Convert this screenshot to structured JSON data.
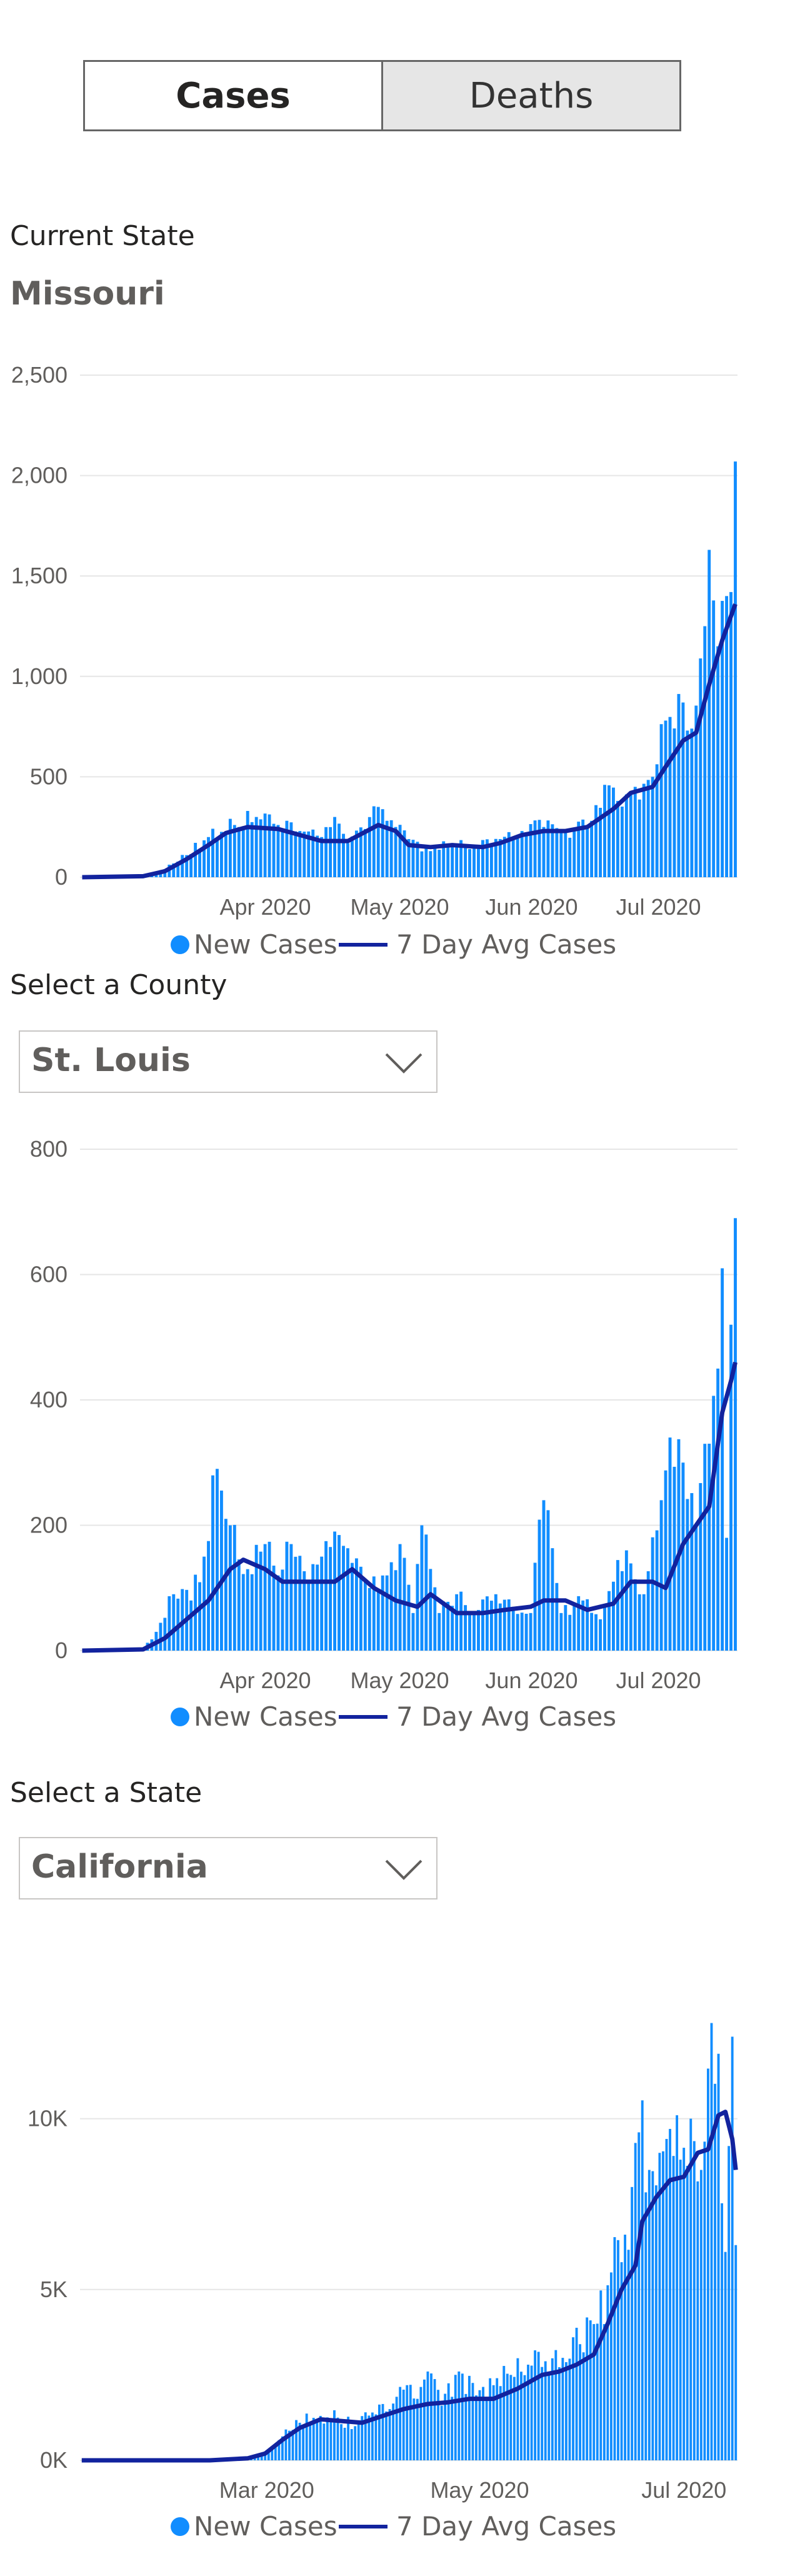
{
  "tabs": {
    "cases": "Cases",
    "deaths": "Deaths"
  },
  "current_state": {
    "label": "Current State",
    "value": "Missouri"
  },
  "county_select": {
    "label": "Select a County",
    "value": "St. Louis"
  },
  "state_select": {
    "label": "Select a State",
    "value": "California"
  },
  "legend": {
    "bars": "New Cases",
    "line": "7 Day Avg Cases"
  },
  "colors": {
    "bars": "#118dff",
    "line": "#12239e",
    "grid": "#e6e6e6"
  },
  "chart_data": [
    {
      "type": "bar",
      "id": "missouri",
      "title": "",
      "x_start": "2020-03-01",
      "x_end": "2020-07-29",
      "x_ticks": [
        "Apr 2020",
        "May 2020",
        "Jun 2020",
        "Jul 2020"
      ],
      "y_ticks": [
        "0",
        "500",
        "1,000",
        "1,500",
        "2,000",
        "2,500"
      ],
      "ylim": [
        0,
        2500
      ],
      "series": [
        {
          "name": "New Cases",
          "type": "bar",
          "points": [
            [
              "2020-03-01",
              0
            ],
            [
              "2020-03-10",
              0
            ],
            [
              "2020-03-15",
              5
            ],
            [
              "2020-03-20",
              40
            ],
            [
              "2020-03-25",
              110
            ],
            [
              "2020-03-30",
              200
            ],
            [
              "2020-04-05",
              260
            ],
            [
              "2020-04-08",
              330
            ],
            [
              "2020-04-10",
              300
            ],
            [
              "2020-04-15",
              260
            ],
            [
              "2020-04-20",
              230
            ],
            [
              "2020-04-25",
              200
            ],
            [
              "2020-04-28",
              300
            ],
            [
              "2020-05-01",
              170
            ],
            [
              "2020-05-05",
              240
            ],
            [
              "2020-05-08",
              350
            ],
            [
              "2020-05-12",
              250
            ],
            [
              "2020-05-15",
              190
            ],
            [
              "2020-05-20",
              130
            ],
            [
              "2020-05-25",
              170
            ],
            [
              "2020-05-30",
              150
            ],
            [
              "2020-06-05",
              190
            ],
            [
              "2020-06-10",
              230
            ],
            [
              "2020-06-15",
              250
            ],
            [
              "2020-06-20",
              230
            ],
            [
              "2020-06-25",
              250
            ],
            [
              "2020-06-29",
              460
            ],
            [
              "2020-07-02",
              380
            ],
            [
              "2020-07-06",
              450
            ],
            [
              "2020-07-10",
              500
            ],
            [
              "2020-07-13",
              780
            ],
            [
              "2020-07-17",
              870
            ],
            [
              "2020-07-19",
              740
            ],
            [
              "2020-07-22",
              1250
            ],
            [
              "2020-07-23",
              1630
            ],
            [
              "2020-07-25",
              1150
            ],
            [
              "2020-07-27",
              1400
            ],
            [
              "2020-07-28",
              1420
            ],
            [
              "2020-07-29",
              2070
            ]
          ]
        },
        {
          "name": "7 Day Avg Cases",
          "type": "line",
          "points": [
            [
              "2020-03-01",
              0
            ],
            [
              "2020-03-15",
              5
            ],
            [
              "2020-03-20",
              30
            ],
            [
              "2020-03-25",
              90
            ],
            [
              "2020-03-30",
              160
            ],
            [
              "2020-04-03",
              220
            ],
            [
              "2020-04-08",
              250
            ],
            [
              "2020-04-15",
              240
            ],
            [
              "2020-04-20",
              210
            ],
            [
              "2020-04-25",
              180
            ],
            [
              "2020-05-01",
              180
            ],
            [
              "2020-05-08",
              260
            ],
            [
              "2020-05-12",
              230
            ],
            [
              "2020-05-15",
              160
            ],
            [
              "2020-05-20",
              150
            ],
            [
              "2020-05-25",
              160
            ],
            [
              "2020-06-01",
              150
            ],
            [
              "2020-06-05",
              170
            ],
            [
              "2020-06-10",
              210
            ],
            [
              "2020-06-15",
              230
            ],
            [
              "2020-06-20",
              230
            ],
            [
              "2020-06-25",
              250
            ],
            [
              "2020-07-01",
              340
            ],
            [
              "2020-07-05",
              420
            ],
            [
              "2020-07-10",
              450
            ],
            [
              "2020-07-13",
              550
            ],
            [
              "2020-07-17",
              680
            ],
            [
              "2020-07-20",
              720
            ],
            [
              "2020-07-23",
              960
            ],
            [
              "2020-07-26",
              1180
            ],
            [
              "2020-07-29",
              1360
            ]
          ]
        }
      ]
    },
    {
      "type": "bar",
      "id": "st-louis",
      "title": "",
      "x_start": "2020-03-01",
      "x_end": "2020-07-29",
      "x_ticks": [
        "Apr 2020",
        "May 2020",
        "Jun 2020",
        "Jul 2020"
      ],
      "y_ticks": [
        "0",
        "200",
        "400",
        "600",
        "800"
      ],
      "ylim": [
        0,
        800
      ],
      "series": [
        {
          "name": "New Cases",
          "type": "bar",
          "points": [
            [
              "2020-03-01",
              0
            ],
            [
              "2020-03-10",
              0
            ],
            [
              "2020-03-15",
              5
            ],
            [
              "2020-03-18",
              30
            ],
            [
              "2020-03-22",
              90
            ],
            [
              "2020-03-26",
              80
            ],
            [
              "2020-03-29",
              150
            ],
            [
              "2020-04-01",
              290
            ],
            [
              "2020-04-04",
              200
            ],
            [
              "2020-04-08",
              130
            ],
            [
              "2020-04-12",
              170
            ],
            [
              "2020-04-15",
              120
            ],
            [
              "2020-04-18",
              170
            ],
            [
              "2020-04-22",
              110
            ],
            [
              "2020-04-25",
              150
            ],
            [
              "2020-04-28",
              190
            ],
            [
              "2020-05-02",
              140
            ],
            [
              "2020-05-06",
              100
            ],
            [
              "2020-05-10",
              120
            ],
            [
              "2020-05-13",
              170
            ],
            [
              "2020-05-16",
              60
            ],
            [
              "2020-05-18",
              200
            ],
            [
              "2020-05-22",
              60
            ],
            [
              "2020-05-26",
              90
            ],
            [
              "2020-05-30",
              60
            ],
            [
              "2020-06-04",
              90
            ],
            [
              "2020-06-08",
              70
            ],
            [
              "2020-06-12",
              60
            ],
            [
              "2020-06-15",
              240
            ],
            [
              "2020-06-19",
              60
            ],
            [
              "2020-06-24",
              80
            ],
            [
              "2020-06-28",
              50
            ],
            [
              "2020-07-01",
              110
            ],
            [
              "2020-07-04",
              160
            ],
            [
              "2020-07-08",
              90
            ],
            [
              "2020-07-12",
              240
            ],
            [
              "2020-07-14",
              340
            ],
            [
              "2020-07-17",
              300
            ],
            [
              "2020-07-20",
              200
            ],
            [
              "2020-07-22",
              330
            ],
            [
              "2020-07-25",
              450
            ],
            [
              "2020-07-26",
              610
            ],
            [
              "2020-07-27",
              180
            ],
            [
              "2020-07-28",
              520
            ],
            [
              "2020-07-29",
              690
            ]
          ]
        },
        {
          "name": "7 Day Avg Cases",
          "type": "line",
          "points": [
            [
              "2020-03-01",
              0
            ],
            [
              "2020-03-15",
              2
            ],
            [
              "2020-03-20",
              20
            ],
            [
              "2020-03-25",
              50
            ],
            [
              "2020-03-30",
              80
            ],
            [
              "2020-04-04",
              130
            ],
            [
              "2020-04-07",
              145
            ],
            [
              "2020-04-12",
              130
            ],
            [
              "2020-04-16",
              110
            ],
            [
              "2020-04-22",
              110
            ],
            [
              "2020-04-28",
              110
            ],
            [
              "2020-05-02",
              130
            ],
            [
              "2020-05-07",
              100
            ],
            [
              "2020-05-12",
              80
            ],
            [
              "2020-05-17",
              70
            ],
            [
              "2020-05-20",
              90
            ],
            [
              "2020-05-26",
              60
            ],
            [
              "2020-06-01",
              60
            ],
            [
              "2020-06-06",
              65
            ],
            [
              "2020-06-12",
              70
            ],
            [
              "2020-06-15",
              80
            ],
            [
              "2020-06-20",
              80
            ],
            [
              "2020-06-25",
              65
            ],
            [
              "2020-07-01",
              75
            ],
            [
              "2020-07-05",
              110
            ],
            [
              "2020-07-10",
              110
            ],
            [
              "2020-07-13",
              100
            ],
            [
              "2020-07-17",
              170
            ],
            [
              "2020-07-20",
              200
            ],
            [
              "2020-07-23",
              230
            ],
            [
              "2020-07-26",
              380
            ],
            [
              "2020-07-28",
              430
            ],
            [
              "2020-07-29",
              460
            ]
          ]
        }
      ]
    },
    {
      "type": "bar",
      "id": "california",
      "title": "",
      "x_start": "2020-01-22",
      "x_end": "2020-07-29",
      "x_ticks": [
        "Mar 2020",
        "May 2020",
        "Jul 2020"
      ],
      "y_ticks": [
        "0K",
        "5K",
        "10K"
      ],
      "ylim": [
        0,
        14000
      ],
      "series": [
        {
          "name": "New Cases",
          "type": "bar",
          "points": [
            [
              "2020-01-22",
              0
            ],
            [
              "2020-02-28",
              0
            ],
            [
              "2020-03-10",
              50
            ],
            [
              "2020-03-15",
              200
            ],
            [
              "2020-03-20",
              700
            ],
            [
              "2020-03-25",
              1100
            ],
            [
              "2020-03-31",
              1300
            ],
            [
              "2020-04-05",
              1250
            ],
            [
              "2020-04-10",
              1000
            ],
            [
              "2020-04-15",
              1400
            ],
            [
              "2020-04-20",
              1500
            ],
            [
              "2020-04-25",
              2200
            ],
            [
              "2020-04-28",
              1800
            ],
            [
              "2020-05-01",
              2600
            ],
            [
              "2020-05-05",
              1600
            ],
            [
              "2020-05-10",
              2600
            ],
            [
              "2020-05-15",
              1900
            ],
            [
              "2020-05-20",
              2200
            ],
            [
              "2020-05-25",
              2500
            ],
            [
              "2020-05-30",
              2800
            ],
            [
              "2020-06-04",
              2900
            ],
            [
              "2020-06-09",
              3000
            ],
            [
              "2020-06-14",
              3400
            ],
            [
              "2020-06-19",
              4000
            ],
            [
              "2020-06-23",
              5500
            ],
            [
              "2020-06-26",
              5800
            ],
            [
              "2020-06-29",
              8000
            ],
            [
              "2020-07-01",
              9600
            ],
            [
              "2020-07-04",
              8500
            ],
            [
              "2020-07-07",
              9000
            ],
            [
              "2020-07-10",
              9700
            ],
            [
              "2020-07-13",
              8800
            ],
            [
              "2020-07-16",
              10000
            ],
            [
              "2020-07-19",
              8500
            ],
            [
              "2020-07-22",
              12800
            ],
            [
              "2020-07-24",
              11900
            ],
            [
              "2020-07-26",
              6100
            ],
            [
              "2020-07-27",
              9200
            ],
            [
              "2020-07-28",
              12400
            ],
            [
              "2020-07-29",
              6300
            ]
          ]
        },
        {
          "name": "7 Day Avg Cases",
          "type": "line",
          "points": [
            [
              "2020-01-22",
              0
            ],
            [
              "2020-02-28",
              0
            ],
            [
              "2020-03-10",
              60
            ],
            [
              "2020-03-15",
              200
            ],
            [
              "2020-03-20",
              600
            ],
            [
              "2020-03-25",
              950
            ],
            [
              "2020-03-31",
              1200
            ],
            [
              "2020-04-06",
              1150
            ],
            [
              "2020-04-12",
              1100
            ],
            [
              "2020-04-18",
              1300
            ],
            [
              "2020-04-24",
              1500
            ],
            [
              "2020-05-01",
              1650
            ],
            [
              "2020-05-07",
              1700
            ],
            [
              "2020-05-13",
              1800
            ],
            [
              "2020-05-20",
              1800
            ],
            [
              "2020-05-27",
              2100
            ],
            [
              "2020-06-03",
              2500
            ],
            [
              "2020-06-08",
              2600
            ],
            [
              "2020-06-13",
              2800
            ],
            [
              "2020-06-18",
              3100
            ],
            [
              "2020-06-22",
              4000
            ],
            [
              "2020-06-26",
              5000
            ],
            [
              "2020-06-30",
              5700
            ],
            [
              "2020-07-02",
              7000
            ],
            [
              "2020-07-06",
              7700
            ],
            [
              "2020-07-10",
              8200
            ],
            [
              "2020-07-14",
              8300
            ],
            [
              "2020-07-18",
              9000
            ],
            [
              "2020-07-21",
              9100
            ],
            [
              "2020-07-24",
              10100
            ],
            [
              "2020-07-26",
              10200
            ],
            [
              "2020-07-28",
              9400
            ],
            [
              "2020-07-29",
              8500
            ]
          ]
        }
      ]
    }
  ]
}
